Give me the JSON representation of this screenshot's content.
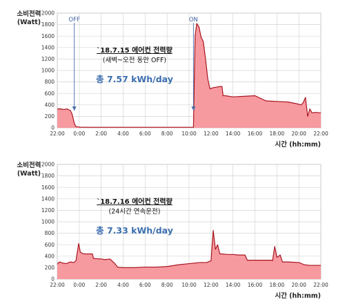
{
  "chart_data": [
    {
      "type": "area",
      "ylabel": [
        "소비전력",
        "(Watt)"
      ],
      "xlabel": "시간 (hh:mm)",
      "ylim": [
        0,
        2000
      ],
      "yticks": [
        0,
        200,
        400,
        600,
        800,
        1000,
        1200,
        1400,
        1600,
        1800,
        2000
      ],
      "xticks": [
        "22:00",
        "0:00",
        "2:00",
        "4:00",
        "6:00",
        "8:00",
        "10:00",
        "12:00",
        "14:00",
        "16:00",
        "18:00",
        "20:00",
        "22:00"
      ],
      "grid": true,
      "annotation": {
        "title": "`18.7.15  에어컨 전력량",
        "subtitle": "(새벽~오전 동안 OFF)",
        "total": "총 7.57 kWh/day"
      },
      "markers": [
        {
          "label": "OFF",
          "x": 1.55
        },
        {
          "label": "ON",
          "x": 12.4
        }
      ],
      "series": [
        {
          "x": [
            0,
            0.3,
            0.6,
            0.9,
            1.2,
            1.35,
            1.55,
            1.7,
            2.2,
            4,
            6,
            8,
            10,
            12,
            12.4,
            12.55,
            12.7,
            12.9,
            13.1,
            13.3,
            13.5,
            13.7,
            13.9,
            14.2,
            14.5,
            14.8,
            15,
            15.1,
            15.3,
            16,
            17,
            18,
            19,
            20,
            21,
            21.8,
            22.2,
            22.4,
            22.6,
            22.8,
            23,
            23.2,
            23.5,
            24
          ],
          "y": [
            330,
            330,
            320,
            330,
            300,
            240,
            80,
            20,
            10,
            10,
            10,
            10,
            10,
            10,
            10,
            1600,
            1820,
            1760,
            1580,
            1500,
            1200,
            860,
            680,
            700,
            710,
            720,
            720,
            560,
            560,
            540,
            550,
            560,
            470,
            460,
            450,
            420,
            400,
            440,
            530,
            200,
            330,
            260,
            270,
            260
          ]
        }
      ]
    },
    {
      "type": "area",
      "ylabel": [
        "소비전력",
        "(Watt)"
      ],
      "xlabel": "시간 (hh:mm)",
      "ylim": [
        0,
        2000
      ],
      "yticks": [
        0,
        200,
        400,
        600,
        800,
        1000,
        1200,
        1400,
        1600,
        1800,
        2000
      ],
      "xticks": [
        "22:00",
        "0:00",
        "2:00",
        "4:00",
        "6:00",
        "8:00",
        "10:00",
        "12:00",
        "14:00",
        "16:00",
        "18:00",
        "20:00",
        "22:00"
      ],
      "grid": true,
      "annotation": {
        "title": "`18.7.16  에어컨 전력량",
        "subtitle": "(24시간 연속운전)",
        "total": "총 7.33 kWh/day"
      },
      "markers": [],
      "series": [
        {
          "x": [
            0,
            0.2,
            0.5,
            0.8,
            1.2,
            1.5,
            1.7,
            1.95,
            2.1,
            2.4,
            2.8,
            3.2,
            3.3,
            4.1,
            4.3,
            4.8,
            5.2,
            5.5,
            6,
            7,
            8,
            9,
            10,
            11,
            12,
            13,
            13.6,
            14,
            14.2,
            14.4,
            14.6,
            14.8,
            15,
            15.5,
            16,
            16.5,
            17.1,
            17.3,
            18,
            19,
            19.5,
            19.6,
            19.8,
            20,
            20.3,
            20.5,
            21,
            22,
            22.5,
            23,
            23.5,
            24
          ],
          "y": [
            260,
            300,
            280,
            270,
            300,
            290,
            320,
            620,
            470,
            440,
            440,
            440,
            360,
            350,
            340,
            350,
            280,
            210,
            200,
            200,
            210,
            210,
            220,
            250,
            270,
            290,
            290,
            320,
            850,
            520,
            600,
            440,
            440,
            430,
            430,
            420,
            420,
            330,
            330,
            330,
            330,
            320,
            570,
            380,
            420,
            300,
            300,
            290,
            250,
            240,
            240,
            240
          ]
        }
      ]
    }
  ]
}
